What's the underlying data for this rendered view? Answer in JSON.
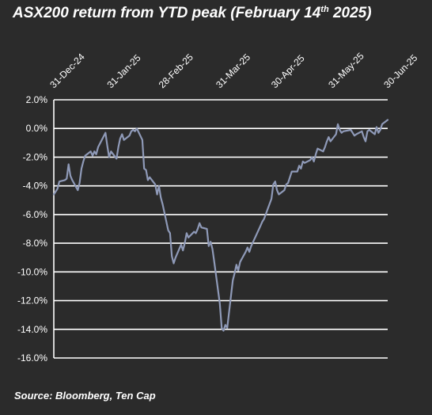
{
  "title": {
    "prefix": "ASX200 return from YTD peak (February 14",
    "superscript": "th",
    "suffix": " 2025)"
  },
  "source": "Source: Bloomberg, Ten Cap",
  "colors": {
    "background": "#2b2b2b",
    "grid": "#ffffff",
    "line": "#8f9ab8",
    "text": "#ffffff"
  },
  "chart_data": {
    "type": "line",
    "title": "ASX200 return from YTD peak (February 14th 2025)",
    "xlabel": "",
    "ylabel": "",
    "ylim": [
      -16,
      2
    ],
    "xlim": [
      "2024-12-31",
      "2025-06-30"
    ],
    "grid": "horizontal",
    "y_ticks": [
      2,
      0,
      -2,
      -4,
      -6,
      -8,
      -10,
      -12,
      -14,
      -16
    ],
    "y_tick_labels": [
      "2.0%",
      "0.0%",
      "-2.0%",
      "-4.0%",
      "-6.0%",
      "-8.0%",
      "-10.0%",
      "-12.0%",
      "-14.0%",
      "-16.0%"
    ],
    "x_tick_labels": [
      {
        "date": "2024-12-31",
        "label": "31-Dec-24"
      },
      {
        "date": "2025-01-31",
        "label": "31-Jan-25"
      },
      {
        "date": "2025-02-28",
        "label": "28-Feb-25"
      },
      {
        "date": "2025-03-31",
        "label": "31-Mar-25"
      },
      {
        "date": "2025-04-30",
        "label": "30-Apr-25"
      },
      {
        "date": "2025-05-31",
        "label": "31-May-25"
      },
      {
        "date": "2025-06-30",
        "label": "30-Jun-25"
      }
    ],
    "series": [
      {
        "color": "#8f9ab8",
        "x": [
          "2024-12-31",
          "2025-01-02",
          "2025-01-03",
          "2025-01-06",
          "2025-01-07",
          "2025-01-08",
          "2025-01-09",
          "2025-01-10",
          "2025-01-13",
          "2025-01-14",
          "2025-01-15",
          "2025-01-16",
          "2025-01-17",
          "2025-01-20",
          "2025-01-21",
          "2025-01-22",
          "2025-01-23",
          "2025-01-24",
          "2025-01-28",
          "2025-01-29",
          "2025-01-30",
          "2025-01-31",
          "2025-02-03",
          "2025-02-04",
          "2025-02-05",
          "2025-02-06",
          "2025-02-07",
          "2025-02-10",
          "2025-02-11",
          "2025-02-12",
          "2025-02-13",
          "2025-02-14",
          "2025-02-17",
          "2025-02-18",
          "2025-02-19",
          "2025-02-20",
          "2025-02-21",
          "2025-02-24",
          "2025-02-25",
          "2025-02-26",
          "2025-02-27",
          "2025-02-28",
          "2025-03-03",
          "2025-03-04",
          "2025-03-05",
          "2025-03-06",
          "2025-03-07",
          "2025-03-10",
          "2025-03-11",
          "2025-03-12",
          "2025-03-13",
          "2025-03-14",
          "2025-03-17",
          "2025-03-18",
          "2025-03-19",
          "2025-03-20",
          "2025-03-21",
          "2025-03-24",
          "2025-03-25",
          "2025-03-26",
          "2025-03-27",
          "2025-03-28",
          "2025-03-31",
          "2025-04-01",
          "2025-04-02",
          "2025-04-03",
          "2025-04-04",
          "2025-04-07",
          "2025-04-08",
          "2025-04-09",
          "2025-04-10",
          "2025-04-11",
          "2025-04-14",
          "2025-04-15",
          "2025-04-16",
          "2025-04-17",
          "2025-04-22",
          "2025-04-23",
          "2025-04-24",
          "2025-04-28",
          "2025-04-29",
          "2025-04-30",
          "2025-05-01",
          "2025-05-02",
          "2025-05-05",
          "2025-05-06",
          "2025-05-07",
          "2025-05-08",
          "2025-05-09",
          "2025-05-12",
          "2025-05-13",
          "2025-05-14",
          "2025-05-15",
          "2025-05-16",
          "2025-05-19",
          "2025-05-20",
          "2025-05-21",
          "2025-05-22",
          "2025-05-23",
          "2025-05-26",
          "2025-05-27",
          "2025-05-28",
          "2025-05-29",
          "2025-05-30",
          "2025-06-02",
          "2025-06-03",
          "2025-06-04",
          "2025-06-05",
          "2025-06-06",
          "2025-06-10",
          "2025-06-11",
          "2025-06-12",
          "2025-06-13",
          "2025-06-16",
          "2025-06-17",
          "2025-06-18",
          "2025-06-19",
          "2025-06-20",
          "2025-06-23",
          "2025-06-24",
          "2025-06-25",
          "2025-06-26",
          "2025-06-27",
          "2025-06-30"
        ],
        "values": [
          -4.6,
          -4.2,
          -3.7,
          -3.6,
          -3.5,
          -2.5,
          -3.3,
          -3.6,
          -4.3,
          -3.8,
          -2.8,
          -2.3,
          -1.9,
          -1.6,
          -1.9,
          -1.6,
          -1.8,
          -1.3,
          -0.3,
          -1.2,
          -2.0,
          -1.6,
          -2.1,
          -1.3,
          -0.7,
          -0.4,
          -0.8,
          -0.5,
          -0.2,
          -0.1,
          -0.2,
          0.0,
          -0.8,
          -2.8,
          -2.9,
          -3.6,
          -3.4,
          -3.9,
          -4.6,
          -4.0,
          -4.8,
          -5.3,
          -7.1,
          -7.3,
          -8.9,
          -9.4,
          -9.0,
          -8.1,
          -8.5,
          -8.0,
          -7.3,
          -7.6,
          -7.2,
          -7.3,
          -7.0,
          -6.6,
          -6.9,
          -7.0,
          -8.2,
          -7.9,
          -8.4,
          -9.3,
          -12.2,
          -13.9,
          -14.1,
          -13.7,
          -13.9,
          -10.6,
          -10.1,
          -9.5,
          -9.9,
          -9.3,
          -8.6,
          -8.3,
          -8.6,
          -8.2,
          -6.8,
          -6.5,
          -6.3,
          -4.9,
          -3.9,
          -3.7,
          -4.3,
          -4.6,
          -4.3,
          -3.9,
          -3.8,
          -3.4,
          -3.0,
          -3.0,
          -2.6,
          -2.8,
          -2.3,
          -2.4,
          -2.2,
          -2.0,
          -2.3,
          -1.8,
          -1.4,
          -1.6,
          -1.3,
          -0.9,
          -0.6,
          -0.9,
          -0.4,
          0.3,
          -0.1,
          -0.3,
          -0.2,
          -0.1,
          -0.3,
          -0.5,
          -0.4,
          -0.2,
          -0.6,
          -0.9,
          -0.2,
          -0.1,
          -0.4,
          0.1,
          -0.3,
          -0.1,
          0.3,
          0.6
        ]
      }
    ]
  }
}
